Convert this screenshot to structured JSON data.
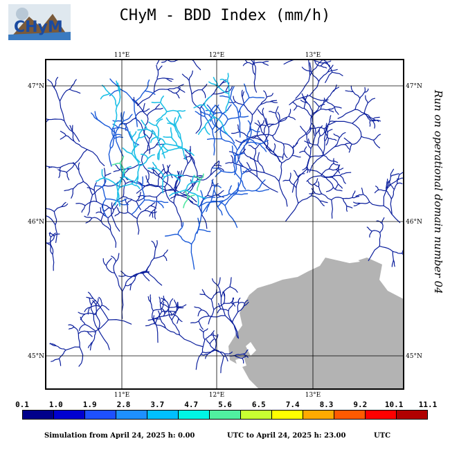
{
  "title": "CHyM - BDD Index (mm/h)",
  "logo_text": "CHyM",
  "side_label": "Run on operational domain number 04",
  "map": {
    "lon_ticks": [
      "11°E",
      "12°E",
      "13°E"
    ],
    "lat_ticks": [
      "47°N",
      "46°N",
      "45°N"
    ]
  },
  "colorbar": {
    "labels": [
      "0.1",
      "1.0",
      "1.9",
      "2.8",
      "3.7",
      "4.7",
      "5.6",
      "6.5",
      "7.4",
      "8.3",
      "9.2",
      "10.1",
      "11.1"
    ],
    "colors": [
      "#00008b",
      "#0000d0",
      "#1e50ff",
      "#1e90ff",
      "#00bfff",
      "#00f5e5",
      "#50f0a0",
      "#c8ff32",
      "#ffff00",
      "#ffaa00",
      "#ff5a00",
      "#ff0000",
      "#b00000"
    ]
  },
  "footer": {
    "left": "Simulation from April 24, 2025 h: 0.00",
    "middle": "UTC to April 24, 2025 h: 23.00",
    "right": "UTC"
  }
}
